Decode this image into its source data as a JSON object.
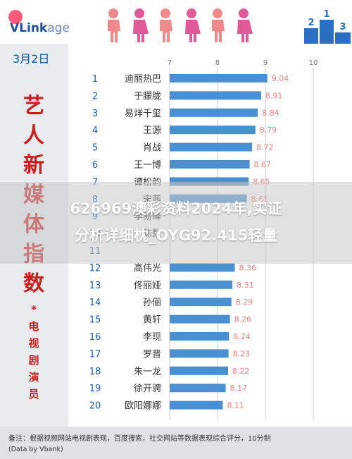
{
  "brand": {
    "name_bold": "VLink",
    "name_light": "age"
  },
  "date_label": "3月2日",
  "side_title": [
    "艺",
    "人",
    "新",
    "媒",
    "体",
    "指",
    "数"
  ],
  "side_sub": [
    "*",
    "电",
    "视",
    "剧",
    "演",
    "员"
  ],
  "colors": {
    "bar": "#4a90d0",
    "value": "#f07f7f",
    "name": "#333333",
    "rank": "#1d5aa8",
    "side_title": "#cc1c1c",
    "side_sub": "#cc1c1c",
    "grid": "#c9ced6",
    "axis_tick": "#7a7a7a"
  },
  "footer": {
    "note": "备注：根据视频网站电视剧表现，百度搜索，社交网站等数据表现综合评分，10分制",
    "source": "(Data by Vbank)"
  },
  "overlay": {
    "line1": "626969澳彩资料2024年,实证",
    "line2": "分析详细枕_OYG92.415轻量"
  },
  "chart_data": {
    "type": "bar",
    "orientation": "horizontal",
    "title": "",
    "xlim": [
      7,
      10
    ],
    "xticks": [
      7,
      8,
      9,
      10
    ],
    "ranks": [
      1,
      2,
      3,
      4,
      5,
      6,
      7,
      8,
      9,
      10,
      11,
      12,
      13,
      14,
      15,
      16,
      17,
      18,
      19,
      20
    ],
    "categories": [
      "迪丽热巴",
      "于朦胧",
      "易烊千玺",
      "王源",
      "肖战",
      "王一博",
      "谭松韵",
      "宋茜",
      "李易峰",
      "陈数",
      "",
      "高伟光",
      "佟丽娅",
      "孙俪",
      "黄轩",
      "李现",
      "罗晋",
      "朱一龙",
      "徐开骋",
      "欧阳娜娜"
    ],
    "values": [
      9.04,
      8.91,
      8.84,
      8.79,
      8.72,
      8.67,
      8.65,
      8.61,
      null,
      null,
      null,
      8.36,
      8.31,
      8.29,
      8.26,
      8.24,
      8.23,
      8.22,
      8.17,
      8.11
    ]
  }
}
